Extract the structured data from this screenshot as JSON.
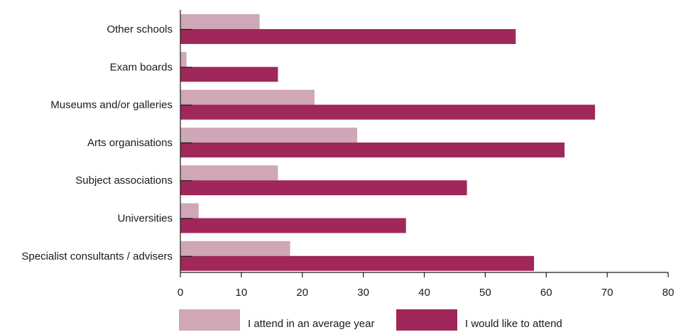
{
  "chart_data": {
    "type": "bar",
    "orientation": "horizontal",
    "categories": [
      "Other schools",
      "Exam boards",
      "Museums and/or galleries",
      "Arts organisations",
      "Subject associations",
      "Universities",
      "Specialist consultants / advisers"
    ],
    "series": [
      {
        "name": "I attend in an average year",
        "color": "#cfa7b7",
        "values": [
          13,
          1,
          22,
          29,
          16,
          3,
          18
        ]
      },
      {
        "name": "I would like to attend",
        "color": "#a0275a",
        "values": [
          55,
          16,
          68,
          63,
          47,
          37,
          58
        ]
      }
    ],
    "xlim": [
      0,
      80
    ],
    "xticks": [
      0,
      10,
      20,
      30,
      40,
      50,
      60,
      70,
      80
    ],
    "title": "",
    "xlabel": "",
    "ylabel": "",
    "grid": false,
    "legend_position": "bottom"
  }
}
